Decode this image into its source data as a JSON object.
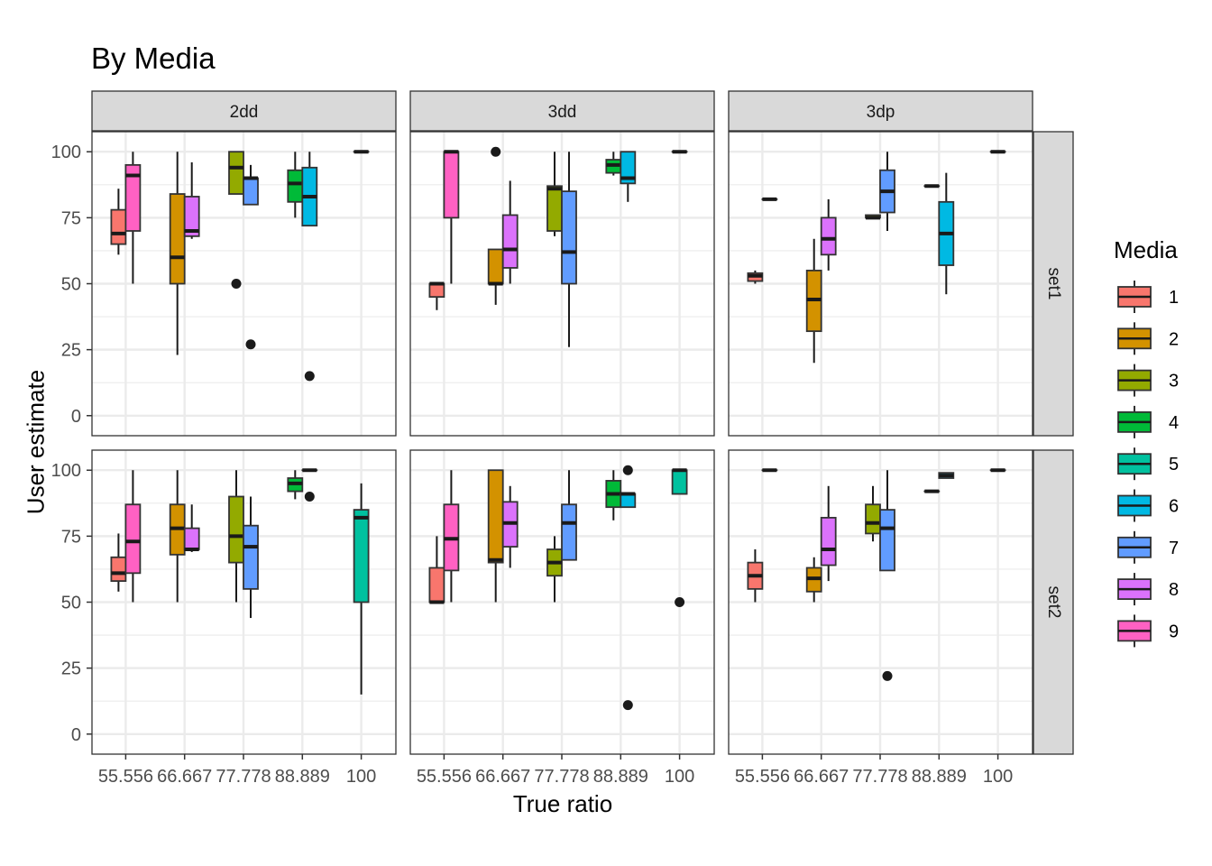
{
  "chart_data": {
    "type": "boxplot",
    "title": "By Media",
    "xlabel": "True ratio",
    "ylabel": "User estimate",
    "legend_title": "Media",
    "legend_position": "right",
    "grid": true,
    "ylim": [
      0,
      100
    ],
    "yticks": [
      0,
      25,
      50,
      75,
      100
    ],
    "categories": [
      "55.556",
      "66.667",
      "77.778",
      "88.889",
      "100"
    ],
    "columns": [
      "2dd",
      "3dd",
      "3dp"
    ],
    "rows": [
      "set1",
      "set2"
    ],
    "media": [
      {
        "name": "1",
        "color": "#F8766D"
      },
      {
        "name": "2",
        "color": "#D39200"
      },
      {
        "name": "3",
        "color": "#93AA00"
      },
      {
        "name": "4",
        "color": "#00BA38"
      },
      {
        "name": "5",
        "color": "#00C19F"
      },
      {
        "name": "6",
        "color": "#00B9E3"
      },
      {
        "name": "7",
        "color": "#619CFF"
      },
      {
        "name": "8",
        "color": "#DB72FB"
      },
      {
        "name": "9",
        "color": "#FF61C3"
      }
    ],
    "panels": [
      {
        "row": "set1",
        "col": "2dd",
        "boxes": [
          {
            "x": "55.556",
            "media": "1",
            "off": -0.5,
            "lw": 61,
            "q1": 65,
            "med": 69,
            "q3": 78,
            "uw": 86,
            "out": []
          },
          {
            "x": "55.556",
            "media": "9",
            "off": 0.5,
            "lw": 50,
            "q1": 70,
            "med": 91,
            "q3": 95,
            "uw": 100,
            "out": []
          },
          {
            "x": "66.667",
            "media": "2",
            "off": -0.5,
            "lw": 23,
            "q1": 50,
            "med": 60,
            "q3": 84,
            "uw": 100,
            "out": []
          },
          {
            "x": "66.667",
            "media": "8",
            "off": 0.5,
            "lw": 67,
            "q1": 68,
            "med": 70,
            "q3": 83,
            "uw": 96,
            "out": []
          },
          {
            "x": "77.778",
            "media": "3",
            "off": -0.5,
            "lw": 84,
            "q1": 84,
            "med": 94,
            "q3": 100,
            "uw": 100,
            "out": [
              50
            ]
          },
          {
            "x": "77.778",
            "media": "7",
            "off": 0.5,
            "lw": 80,
            "q1": 80,
            "med": 90,
            "q3": 90,
            "uw": 95,
            "out": [
              27
            ]
          },
          {
            "x": "88.889",
            "media": "4",
            "off": -0.5,
            "lw": 75,
            "q1": 81,
            "med": 88,
            "q3": 93,
            "uw": 100,
            "out": []
          },
          {
            "x": "88.889",
            "media": "6",
            "off": 0.5,
            "lw": 72,
            "q1": 72,
            "med": 83,
            "q3": 94,
            "uw": 100,
            "out": [
              15
            ]
          },
          {
            "x": "100",
            "media": "5",
            "off": 0,
            "lw": 100,
            "q1": 100,
            "med": 100,
            "q3": 100,
            "uw": 100,
            "out": []
          }
        ]
      },
      {
        "row": "set1",
        "col": "3dd",
        "boxes": [
          {
            "x": "55.556",
            "media": "1",
            "off": -0.5,
            "lw": 40,
            "q1": 45,
            "med": 50,
            "q3": 50,
            "uw": 50,
            "out": []
          },
          {
            "x": "55.556",
            "media": "9",
            "off": 0.5,
            "lw": 50,
            "q1": 75,
            "med": 100,
            "q3": 100,
            "uw": 100,
            "out": []
          },
          {
            "x": "66.667",
            "media": "2",
            "off": -0.5,
            "lw": 42,
            "q1": 50,
            "med": 50,
            "q3": 63,
            "uw": 63,
            "out": [
              100
            ]
          },
          {
            "x": "66.667",
            "media": "8",
            "off": 0.5,
            "lw": 50,
            "q1": 56,
            "med": 63,
            "q3": 76,
            "uw": 89,
            "out": []
          },
          {
            "x": "77.778",
            "media": "3",
            "off": -0.5,
            "lw": 68,
            "q1": 70,
            "med": 86,
            "q3": 87,
            "uw": 100,
            "out": []
          },
          {
            "x": "77.778",
            "media": "7",
            "off": 0.5,
            "lw": 26,
            "q1": 50,
            "med": 62,
            "q3": 85,
            "uw": 100,
            "out": []
          },
          {
            "x": "88.889",
            "media": "4",
            "off": -0.5,
            "lw": 91,
            "q1": 92,
            "med": 95,
            "q3": 97,
            "uw": 100,
            "out": []
          },
          {
            "x": "88.889",
            "media": "6",
            "off": 0.5,
            "lw": 81,
            "q1": 88,
            "med": 90,
            "q3": 100,
            "uw": 100,
            "out": []
          },
          {
            "x": "100",
            "media": "5",
            "off": 0,
            "lw": 100,
            "q1": 100,
            "med": 100,
            "q3": 100,
            "uw": 100,
            "out": []
          }
        ]
      },
      {
        "row": "set1",
        "col": "3dp",
        "boxes": [
          {
            "x": "55.556",
            "media": "1",
            "off": -0.5,
            "lw": 50,
            "q1": 51,
            "med": 53,
            "q3": 54,
            "uw": 55,
            "out": []
          },
          {
            "x": "55.556",
            "media": "9",
            "off": 0.5,
            "lw": 82,
            "q1": 82,
            "med": 82,
            "q3": 82,
            "uw": 82,
            "out": []
          },
          {
            "x": "66.667",
            "media": "2",
            "off": -0.5,
            "lw": 20,
            "q1": 32,
            "med": 44,
            "q3": 55,
            "uw": 67,
            "out": []
          },
          {
            "x": "66.667",
            "media": "8",
            "off": 0.5,
            "lw": 55,
            "q1": 61,
            "med": 67,
            "q3": 75,
            "uw": 82,
            "out": []
          },
          {
            "x": "77.778",
            "media": "3",
            "off": -0.5,
            "lw": 75,
            "q1": 75,
            "med": 75,
            "q3": 76,
            "uw": 76,
            "out": []
          },
          {
            "x": "77.778",
            "media": "7",
            "off": 0.5,
            "lw": 70,
            "q1": 77,
            "med": 85,
            "q3": 93,
            "uw": 100,
            "out": []
          },
          {
            "x": "88.889",
            "media": "4",
            "off": -0.5,
            "lw": 87,
            "q1": 87,
            "med": 87,
            "q3": 87,
            "uw": 87,
            "out": []
          },
          {
            "x": "88.889",
            "media": "6",
            "off": 0.5,
            "lw": 46,
            "q1": 57,
            "med": 69,
            "q3": 81,
            "uw": 92,
            "out": []
          },
          {
            "x": "100",
            "media": "5",
            "off": 0,
            "lw": 100,
            "q1": 100,
            "med": 100,
            "q3": 100,
            "uw": 100,
            "out": []
          }
        ]
      },
      {
        "row": "set2",
        "col": "2dd",
        "boxes": [
          {
            "x": "55.556",
            "media": "1",
            "off": -0.5,
            "lw": 54,
            "q1": 58,
            "med": 61,
            "q3": 67,
            "uw": 76,
            "out": []
          },
          {
            "x": "55.556",
            "media": "9",
            "off": 0.5,
            "lw": 50,
            "q1": 61,
            "med": 73,
            "q3": 87,
            "uw": 100,
            "out": []
          },
          {
            "x": "66.667",
            "media": "2",
            "off": -0.5,
            "lw": 50,
            "q1": 68,
            "med": 78,
            "q3": 87,
            "uw": 100,
            "out": []
          },
          {
            "x": "66.667",
            "media": "8",
            "off": 0.5,
            "lw": 69,
            "q1": 70,
            "med": 70,
            "q3": 78,
            "uw": 87,
            "out": []
          },
          {
            "x": "77.778",
            "media": "3",
            "off": -0.5,
            "lw": 50,
            "q1": 65,
            "med": 75,
            "q3": 90,
            "uw": 100,
            "out": []
          },
          {
            "x": "77.778",
            "media": "7",
            "off": 0.5,
            "lw": 44,
            "q1": 55,
            "med": 71,
            "q3": 79,
            "uw": 90,
            "out": []
          },
          {
            "x": "88.889",
            "media": "4",
            "off": -0.5,
            "lw": 89,
            "q1": 92,
            "med": 95,
            "q3": 97,
            "uw": 100,
            "out": []
          },
          {
            "x": "88.889",
            "media": "6",
            "off": 0.5,
            "lw": 100,
            "q1": 100,
            "med": 100,
            "q3": 100,
            "uw": 100,
            "out": [
              90
            ]
          },
          {
            "x": "100",
            "media": "5",
            "off": 0,
            "lw": 15,
            "q1": 50,
            "med": 82,
            "q3": 85,
            "uw": 95,
            "out": []
          }
        ]
      },
      {
        "row": "set2",
        "col": "3dd",
        "boxes": [
          {
            "x": "55.556",
            "media": "1",
            "off": -0.5,
            "lw": 50,
            "q1": 50,
            "med": 50,
            "q3": 63,
            "uw": 75,
            "out": []
          },
          {
            "x": "55.556",
            "media": "9",
            "off": 0.5,
            "lw": 50,
            "q1": 62,
            "med": 74,
            "q3": 87,
            "uw": 100,
            "out": []
          },
          {
            "x": "66.667",
            "media": "2",
            "off": -0.5,
            "lw": 50,
            "q1": 65,
            "med": 66,
            "q3": 100,
            "uw": 100,
            "out": []
          },
          {
            "x": "66.667",
            "media": "8",
            "off": 0.5,
            "lw": 63,
            "q1": 71,
            "med": 80,
            "q3": 88,
            "uw": 94,
            "out": []
          },
          {
            "x": "77.778",
            "media": "3",
            "off": -0.5,
            "lw": 50,
            "q1": 60,
            "med": 65,
            "q3": 70,
            "uw": 75,
            "out": []
          },
          {
            "x": "77.778",
            "media": "7",
            "off": 0.5,
            "lw": 66,
            "q1": 66,
            "med": 80,
            "q3": 87,
            "uw": 100,
            "out": []
          },
          {
            "x": "88.889",
            "media": "4",
            "off": -0.5,
            "lw": 81,
            "q1": 86,
            "med": 91,
            "q3": 96,
            "uw": 100,
            "out": []
          },
          {
            "x": "88.889",
            "media": "6",
            "off": 0.5,
            "lw": 86,
            "q1": 86,
            "med": 91,
            "q3": 91,
            "uw": 91,
            "out": [
              100,
              11
            ]
          },
          {
            "x": "100",
            "media": "5",
            "off": 0,
            "lw": 91,
            "q1": 91,
            "med": 100,
            "q3": 100,
            "uw": 100,
            "out": [
              50
            ]
          }
        ]
      },
      {
        "row": "set2",
        "col": "3dp",
        "boxes": [
          {
            "x": "55.556",
            "media": "1",
            "off": -0.5,
            "lw": 50,
            "q1": 55,
            "med": 60,
            "q3": 65,
            "uw": 70,
            "out": []
          },
          {
            "x": "55.556",
            "media": "9",
            "off": 0.5,
            "lw": 100,
            "q1": 100,
            "med": 100,
            "q3": 100,
            "uw": 100,
            "out": []
          },
          {
            "x": "66.667",
            "media": "2",
            "off": -0.5,
            "lw": 50,
            "q1": 54,
            "med": 59,
            "q3": 63,
            "uw": 67,
            "out": []
          },
          {
            "x": "66.667",
            "media": "8",
            "off": 0.5,
            "lw": 58,
            "q1": 64,
            "med": 70,
            "q3": 82,
            "uw": 94,
            "out": []
          },
          {
            "x": "77.778",
            "media": "3",
            "off": -0.5,
            "lw": 73,
            "q1": 76,
            "med": 80,
            "q3": 87,
            "uw": 94,
            "out": []
          },
          {
            "x": "77.778",
            "media": "7",
            "off": 0.5,
            "lw": 62,
            "q1": 62,
            "med": 78,
            "q3": 85,
            "uw": 100,
            "out": [
              22
            ]
          },
          {
            "x": "88.889",
            "media": "4",
            "off": -0.5,
            "lw": 92,
            "q1": 92,
            "med": 92,
            "q3": 92,
            "uw": 92,
            "out": []
          },
          {
            "x": "88.889",
            "media": "6",
            "off": 0.5,
            "lw": 97,
            "q1": 97,
            "med": 98,
            "q3": 99,
            "uw": 99,
            "out": []
          },
          {
            "x": "100",
            "media": "5",
            "off": 0,
            "lw": 100,
            "q1": 100,
            "med": 100,
            "q3": 100,
            "uw": 100,
            "out": []
          }
        ]
      }
    ]
  }
}
